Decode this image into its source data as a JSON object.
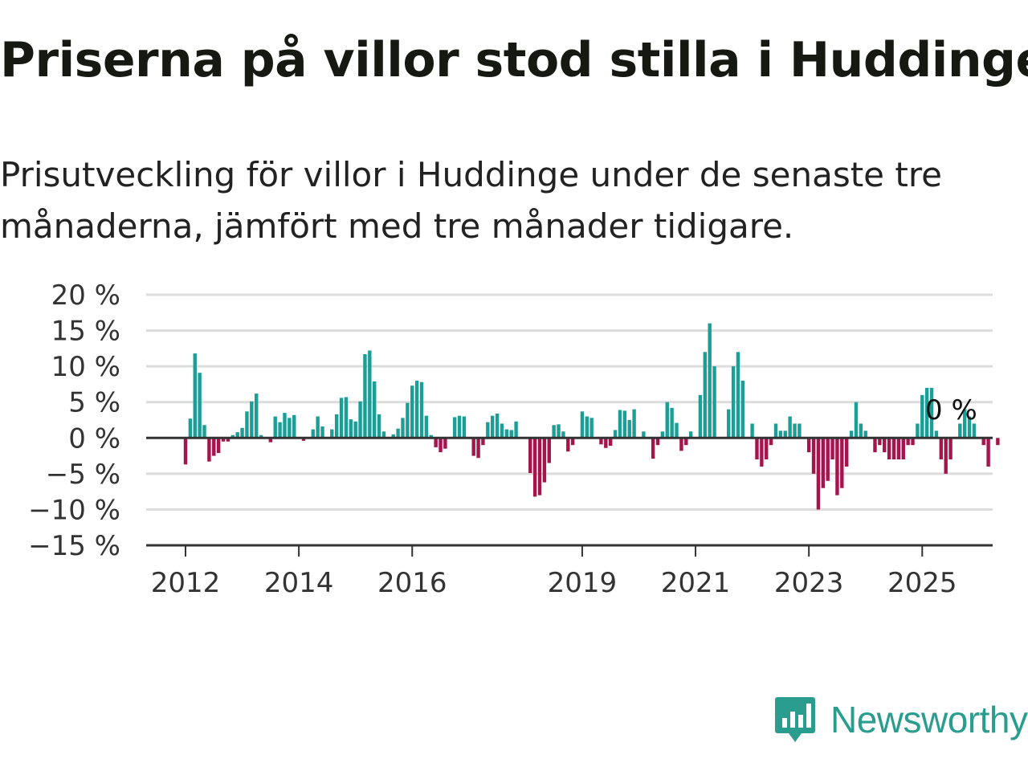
{
  "title": "Priserna på villor stod stilla i Huddinge",
  "subtitle": "Prisutveckling för villor i Huddinge under de senaste tre månaderna, jämfört med tre månader tidigare.",
  "brand": {
    "name": "Newsworthy",
    "color": "#2a9d8f",
    "icon": "newsworthy-logo-icon"
  },
  "chart_data": {
    "type": "bar",
    "ylim": [
      -15,
      20
    ],
    "y_ticks": [
      20,
      15,
      10,
      5,
      0,
      -5,
      -10,
      -15
    ],
    "y_tick_labels": [
      "20 %",
      "15 %",
      "10 %",
      "5 %",
      "0 %",
      "−5 %",
      "−10 %",
      "−15 %"
    ],
    "x_tick_labels": [
      "2012",
      "2014",
      "2016",
      "2019",
      "2021",
      "2023",
      "2025"
    ],
    "x_tick_dates": [
      "2012-01",
      "2014-01",
      "2016-01",
      "2019-01",
      "2021-01",
      "2023-01",
      "2025-01"
    ],
    "end_label": "0 %",
    "grid": true,
    "colors": {
      "positive": "#1a9e96",
      "negative": "#a3154b",
      "grid": "#dcdcdc",
      "axis": "#333333"
    },
    "series": [
      {
        "start": "2012-01",
        "values": [
          -3.7,
          2.7,
          11.8,
          9.1,
          1.8,
          -3.3,
          -2.5,
          -2.1,
          -0.5,
          -0.5,
          0.4,
          0.8,
          1.4,
          3.7,
          5.1,
          6.2,
          0.4,
          0.0,
          -0.6,
          3.0,
          2.2,
          3.5,
          2.8,
          3.2,
          0.0,
          -0.4,
          0.0,
          1.2,
          3.0,
          1.6,
          0.0,
          1.2,
          3.3,
          5.6,
          5.7,
          2.6,
          2.3,
          5.1,
          11.7,
          12.2,
          7.9,
          3.3,
          0.9,
          0.0,
          0.5,
          1.3,
          2.8,
          4.9,
          7.3,
          8.0,
          7.8,
          3.1,
          0.4,
          -1.3,
          -2.0,
          -1.5,
          0.0,
          2.9,
          3.1,
          3.0,
          0.0,
          -2.5,
          -2.8,
          -1.0,
          2.2,
          3.1,
          3.4,
          2.0,
          1.2,
          1.1,
          2.3,
          0.0,
          0.0,
          -4.9,
          -8.2,
          -8.0,
          -6.2,
          -3.5,
          1.8,
          1.9,
          0.9,
          -1.9,
          -1.0,
          0.0,
          3.7,
          3.0,
          2.8,
          0.0,
          -0.9,
          -1.4,
          -1.1,
          1.1,
          3.9,
          3.8,
          2.5,
          4.0,
          0.0,
          0.9,
          0.0,
          -2.9,
          -1.0,
          0.9,
          5.0,
          4.2,
          2.1,
          -1.8,
          -1.0,
          0.9,
          0.0,
          6.0,
          12.0,
          16.0,
          10.0,
          0.0,
          0.0,
          4.0,
          10.0,
          12.0,
          8.0,
          0.0,
          2.0,
          -3.0,
          -4.0,
          -3.0,
          -1.0,
          2.0,
          1.0,
          1.0,
          3.0,
          2.0,
          2.0,
          0.0,
          -2.0,
          -5.0,
          -10.0,
          -7.0,
          -6.0,
          -3.0,
          -8.0,
          -7.0,
          -4.0,
          1.0,
          5.0,
          2.0,
          1.0,
          0.0,
          -2.0,
          -1.0,
          -2.0,
          -3.0,
          -3.0,
          -3.0,
          -3.0,
          -1.0,
          -1.0,
          2.0,
          6.0,
          7.0,
          7.0,
          1.0,
          -3.0,
          -5.0,
          -3.0,
          0.0,
          2.0,
          4.0,
          3.0,
          2.0,
          0.0,
          -1.0,
          -4.0,
          0.0,
          -1.0,
          0.0
        ]
      }
    ]
  }
}
